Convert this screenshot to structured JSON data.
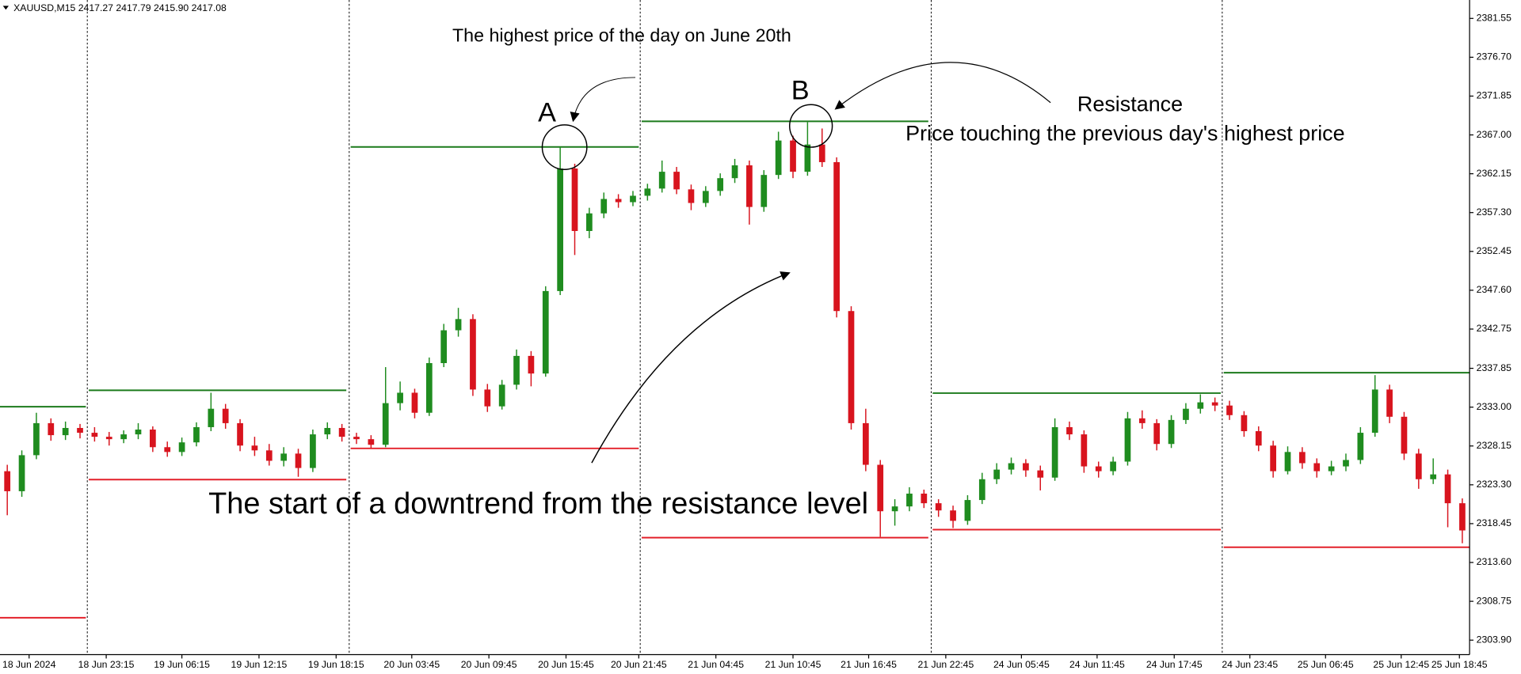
{
  "chart_data": {
    "type": "candlestick",
    "title": "XAUUSD,M15  2417.27 2417.79 2415.90 2417.08",
    "annotations": [
      "The highest price of the day on June 20th",
      "A",
      "B",
      "Resistance",
      "Price touching the previous day's highest price",
      "The start of a downtrend from the resistance level"
    ],
    "bull_color": "#1f8c1f",
    "bear_color": "#d8141e",
    "xlim": [
      -0.5,
      100.5
    ],
    "ylim": [
      2302.09,
      2383.85
    ],
    "yticks": [
      2381.55,
      {
        "value": 2376.7,
        "label": "2376.70"
      },
      2371.85,
      {
        "value": 2367,
        "label": "2367.00"
      },
      2362.15,
      {
        "value": 2357.3,
        "label": "2357.30"
      },
      2352.45,
      {
        "value": 2347.6,
        "label": "2347.60"
      },
      2342.75,
      2337.85,
      {
        "value": 2333,
        "label": "2333.00"
      },
      2328.15,
      {
        "value": 2323.3,
        "label": "2323.30"
      },
      2318.45,
      {
        "value": 2313.6,
        "label": "2313.60"
      },
      2308.75,
      {
        "value": 2303.9,
        "label": "2303.90"
      }
    ],
    "xticks": [
      {
        "value": 1.5,
        "label": "18 Jun 2024"
      },
      {
        "value": 6.8,
        "label": "18 Jun 23:15"
      },
      {
        "value": 12.0,
        "label": "19 Jun 06:15"
      },
      {
        "value": 17.3,
        "label": "19 Jun 12:15"
      },
      {
        "value": 22.6,
        "label": "19 Jun 18:15"
      },
      {
        "value": 27.8,
        "label": "20 Jun 03:45"
      },
      {
        "value": 33.1,
        "label": "20 Jun 09:45"
      },
      {
        "value": 38.4,
        "label": "20 Jun 15:45"
      },
      {
        "value": 43.4,
        "label": "20 Jun 21:45"
      },
      {
        "value": 48.7,
        "label": "21 Jun 04:45"
      },
      {
        "value": 54.0,
        "label": "21 Jun 10:45"
      },
      {
        "value": 59.2,
        "label": "21 Jun 16:45"
      },
      {
        "value": 64.5,
        "label": "21 Jun 22:45"
      },
      {
        "value": 69.7,
        "label": "24 Jun 05:45"
      },
      {
        "value": 74.9,
        "label": "24 Jun 11:45"
      },
      {
        "value": 80.2,
        "label": "24 Jun 17:45"
      },
      {
        "value": 85.4,
        "label": "24 Jun 23:45"
      },
      {
        "value": 90.6,
        "label": "25 Jun 06:45"
      },
      {
        "value": 95.8,
        "label": "25 Jun 12:45"
      },
      {
        "value": 99.8,
        "label": "25 Jun 18:45"
      }
    ],
    "separators": [
      5.5,
      23.5,
      43.5,
      63.5,
      83.5
    ],
    "levels": [
      {
        "start": -0.5,
        "end": 5.4,
        "value": 2333.05,
        "color": "#1b7a1b"
      },
      {
        "start": -0.5,
        "end": 5.4,
        "value": 2306.7,
        "color": "#e3202a"
      },
      {
        "start": 5.6,
        "end": 23.3,
        "value": 2335.1,
        "color": "#1b7a1b"
      },
      {
        "start": 5.6,
        "end": 23.3,
        "value": 2323.95,
        "color": "#e3202a"
      },
      {
        "start": 23.6,
        "end": 43.4,
        "value": 2365.5,
        "color": "#1b7a1b"
      },
      {
        "start": 23.6,
        "end": 43.4,
        "value": 2327.85,
        "color": "#e3202a"
      },
      {
        "start": 43.6,
        "end": 63.3,
        "value": 2368.7,
        "color": "#1b7a1b"
      },
      {
        "start": 43.6,
        "end": 63.3,
        "value": 2316.7,
        "color": "#e3202a"
      },
      {
        "start": 63.6,
        "end": 83.4,
        "value": 2334.75,
        "color": "#1b7a1b"
      },
      {
        "start": 63.6,
        "end": 83.4,
        "value": 2317.7,
        "color": "#e3202a"
      },
      {
        "start": 83.6,
        "end": 100.5,
        "value": 2337.3,
        "color": "#1b7a1b"
      },
      {
        "start": 83.6,
        "end": 100.5,
        "value": 2315.5,
        "color": "#e3202a"
      }
    ],
    "candles": [
      [
        2325.0,
        2325.8,
        2319.5,
        2322.5
      ],
      [
        2322.5,
        2327.6,
        2321.8,
        2327.0
      ],
      [
        2327.0,
        2332.3,
        2326.5,
        2331.0
      ],
      [
        2331.0,
        2331.6,
        2328.8,
        2329.5
      ],
      [
        2329.5,
        2331.2,
        2328.9,
        2330.4
      ],
      [
        2330.4,
        2330.9,
        2329.1,
        2329.8
      ],
      [
        2329.8,
        2330.5,
        2328.7,
        2329.3
      ],
      [
        2329.3,
        2329.9,
        2328.2,
        2329.0
      ],
      [
        2329.0,
        2330.1,
        2328.5,
        2329.6
      ],
      [
        2329.6,
        2331.0,
        2329.0,
        2330.2
      ],
      [
        2330.2,
        2330.6,
        2327.4,
        2328.0
      ],
      [
        2328.0,
        2328.7,
        2326.8,
        2327.4
      ],
      [
        2327.4,
        2329.2,
        2326.9,
        2328.6
      ],
      [
        2328.6,
        2331.1,
        2328.1,
        2330.5
      ],
      [
        2330.5,
        2334.8,
        2330.0,
        2332.8
      ],
      [
        2332.8,
        2333.4,
        2330.3,
        2331.0
      ],
      [
        2331.0,
        2331.5,
        2327.5,
        2328.2
      ],
      [
        2328.2,
        2329.3,
        2326.9,
        2327.6
      ],
      [
        2327.6,
        2328.4,
        2325.7,
        2326.3
      ],
      [
        2326.3,
        2328.0,
        2325.6,
        2327.2
      ],
      [
        2327.2,
        2327.8,
        2324.3,
        2325.4
      ],
      [
        2325.4,
        2330.2,
        2324.9,
        2329.6
      ],
      [
        2329.6,
        2331.1,
        2329.0,
        2330.4
      ],
      [
        2330.4,
        2330.9,
        2328.7,
        2329.3
      ],
      [
        2329.3,
        2329.8,
        2328.4,
        2329.0
      ],
      [
        2329.0,
        2329.5,
        2327.9,
        2328.3
      ],
      [
        2328.3,
        2338.0,
        2328.0,
        2333.5
      ],
      [
        2333.5,
        2336.2,
        2332.6,
        2334.8
      ],
      [
        2334.8,
        2335.3,
        2331.6,
        2332.3
      ],
      [
        2332.3,
        2339.2,
        2331.9,
        2338.5
      ],
      [
        2338.5,
        2343.4,
        2338.0,
        2342.6
      ],
      [
        2342.6,
        2345.4,
        2341.8,
        2344.0
      ],
      [
        2344.0,
        2344.6,
        2334.4,
        2335.2
      ],
      [
        2335.2,
        2335.9,
        2332.4,
        2333.1
      ],
      [
        2333.1,
        2336.4,
        2332.7,
        2335.8
      ],
      [
        2335.8,
        2340.2,
        2335.2,
        2339.4
      ],
      [
        2339.4,
        2340.0,
        2335.6,
        2337.2
      ],
      [
        2337.2,
        2348.1,
        2336.8,
        2347.5
      ],
      [
        2347.5,
        2365.5,
        2347.0,
        2362.8
      ],
      [
        2362.8,
        2363.4,
        2352.0,
        2355.0
      ],
      [
        2355.0,
        2357.9,
        2354.1,
        2357.2
      ],
      [
        2357.2,
        2359.8,
        2356.6,
        2359.0
      ],
      [
        2359.0,
        2359.6,
        2357.9,
        2358.6
      ],
      [
        2358.6,
        2360.0,
        2358.1,
        2359.4
      ],
      [
        2359.4,
        2360.9,
        2358.8,
        2360.3
      ],
      [
        2360.3,
        2363.8,
        2359.8,
        2362.4
      ],
      [
        2362.4,
        2363.0,
        2359.6,
        2360.2
      ],
      [
        2360.2,
        2360.8,
        2357.6,
        2358.5
      ],
      [
        2358.5,
        2360.6,
        2358.0,
        2360.0
      ],
      [
        2360.0,
        2362.2,
        2359.4,
        2361.6
      ],
      [
        2361.6,
        2364.0,
        2361.0,
        2363.2
      ],
      [
        2363.2,
        2363.8,
        2355.8,
        2358.0
      ],
      [
        2358.0,
        2362.6,
        2357.4,
        2362.0
      ],
      [
        2362.0,
        2367.4,
        2361.5,
        2366.3
      ],
      [
        2366.3,
        2366.9,
        2361.6,
        2362.4
      ],
      [
        2362.4,
        2368.6,
        2361.9,
        2365.8
      ],
      [
        2365.8,
        2367.8,
        2363.0,
        2363.6
      ],
      [
        2363.6,
        2364.2,
        2344.2,
        2345.0
      ],
      [
        2345.0,
        2345.6,
        2330.2,
        2331.0
      ],
      [
        2331.0,
        2332.8,
        2325.0,
        2325.8
      ],
      [
        2325.8,
        2326.4,
        2316.8,
        2320.0
      ],
      [
        2320.0,
        2321.5,
        2318.2,
        2320.6
      ],
      [
        2320.6,
        2323.0,
        2320.0,
        2322.2
      ],
      [
        2322.2,
        2322.7,
        2320.4,
        2321.0
      ],
      [
        2321.0,
        2321.5,
        2319.3,
        2320.1
      ],
      [
        2320.1,
        2320.7,
        2317.9,
        2318.8
      ],
      [
        2318.8,
        2322.0,
        2318.3,
        2321.4
      ],
      [
        2321.4,
        2324.8,
        2320.9,
        2324.0
      ],
      [
        2324.0,
        2326.0,
        2323.4,
        2325.2
      ],
      [
        2325.2,
        2326.7,
        2324.6,
        2326.0
      ],
      [
        2326.0,
        2326.5,
        2324.3,
        2325.1
      ],
      [
        2325.1,
        2325.7,
        2322.6,
        2324.2
      ],
      [
        2324.2,
        2331.6,
        2323.8,
        2330.5
      ],
      [
        2330.5,
        2331.2,
        2328.9,
        2329.6
      ],
      [
        2329.6,
        2330.1,
        2324.8,
        2325.6
      ],
      [
        2325.6,
        2326.2,
        2324.2,
        2325.0
      ],
      [
        2325.0,
        2326.8,
        2324.5,
        2326.2
      ],
      [
        2326.2,
        2332.4,
        2325.7,
        2331.6
      ],
      [
        2331.6,
        2332.6,
        2330.3,
        2331.0
      ],
      [
        2331.0,
        2331.5,
        2327.6,
        2328.4
      ],
      [
        2328.4,
        2332.0,
        2327.9,
        2331.4
      ],
      [
        2331.4,
        2333.5,
        2330.9,
        2332.8
      ],
      [
        2332.8,
        2334.6,
        2332.2,
        2333.6
      ],
      [
        2333.6,
        2334.2,
        2332.5,
        2333.2
      ],
      [
        2333.2,
        2333.8,
        2331.4,
        2332.0
      ],
      [
        2332.0,
        2332.5,
        2329.3,
        2330.0
      ],
      [
        2330.0,
        2330.6,
        2327.5,
        2328.2
      ],
      [
        2328.2,
        2328.8,
        2324.2,
        2325.0
      ],
      [
        2325.0,
        2328.1,
        2324.6,
        2327.4
      ],
      [
        2327.4,
        2328.0,
        2325.3,
        2326.0
      ],
      [
        2326.0,
        2326.6,
        2324.2,
        2325.0
      ],
      [
        2325.0,
        2326.3,
        2324.5,
        2325.6
      ],
      [
        2325.6,
        2327.2,
        2325.0,
        2326.4
      ],
      [
        2326.4,
        2330.5,
        2325.9,
        2329.8
      ],
      [
        2329.8,
        2337.0,
        2329.3,
        2335.2
      ],
      [
        2335.2,
        2335.8,
        2331.0,
        2331.8
      ],
      [
        2331.8,
        2332.4,
        2326.4,
        2327.2
      ],
      [
        2327.2,
        2327.8,
        2322.8,
        2324.0
      ],
      [
        2324.0,
        2326.6,
        2323.4,
        2324.6
      ],
      [
        2324.6,
        2325.2,
        2318.0,
        2321.0
      ],
      [
        2321.0,
        2321.6,
        2316.0,
        2317.6
      ]
    ]
  }
}
